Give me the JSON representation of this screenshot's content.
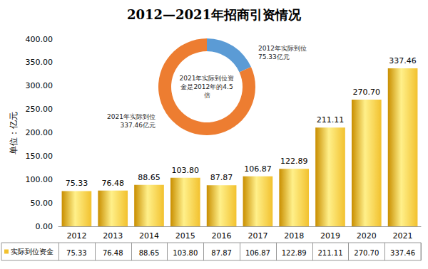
{
  "chart_data": [
    {
      "type": "bar",
      "title": "2012—2021年招商引资情况",
      "y_label": "单位：亿元",
      "categories": [
        "2012",
        "2013",
        "2014",
        "2015",
        "2016",
        "2017",
        "2018",
        "2019",
        "2020",
        "2021"
      ],
      "series": [
        {
          "name": "实际到位资金",
          "color": "#f2c12e",
          "values": [
            75.33,
            76.48,
            88.65,
            103.8,
            87.87,
            106.87,
            122.89,
            211.11,
            270.7,
            337.46
          ],
          "value_labels": [
            "75.33",
            "76.48",
            "88.65",
            "103.80",
            "87.87",
            "106.87",
            "122.89",
            "211.11",
            "270.70",
            "337.46"
          ]
        }
      ],
      "ylim": [
        0,
        400
      ],
      "yticks": [
        {
          "value": 0,
          "label": "0.00"
        },
        {
          "value": 50,
          "label": "50.00"
        },
        {
          "value": 100,
          "label": "100.00"
        },
        {
          "value": 150,
          "label": "150.00"
        },
        {
          "value": 200,
          "label": "200.00"
        },
        {
          "value": 250,
          "label": "250.00"
        },
        {
          "value": 300,
          "label": "300.00"
        },
        {
          "value": 350,
          "label": "350.00"
        },
        {
          "value": 400,
          "label": "400.00"
        }
      ],
      "grid": false,
      "data_labels": true
    },
    {
      "type": "pie",
      "categories": [
        "2012年实际到位75.33亿元",
        "2021年实际到位337.46亿元"
      ],
      "values": [
        75.33,
        337.46
      ],
      "colors": [
        "#5b9bd5",
        "#ed7d31"
      ],
      "annotation": "2021年实际到位资金是2012年的4.5倍"
    }
  ]
}
